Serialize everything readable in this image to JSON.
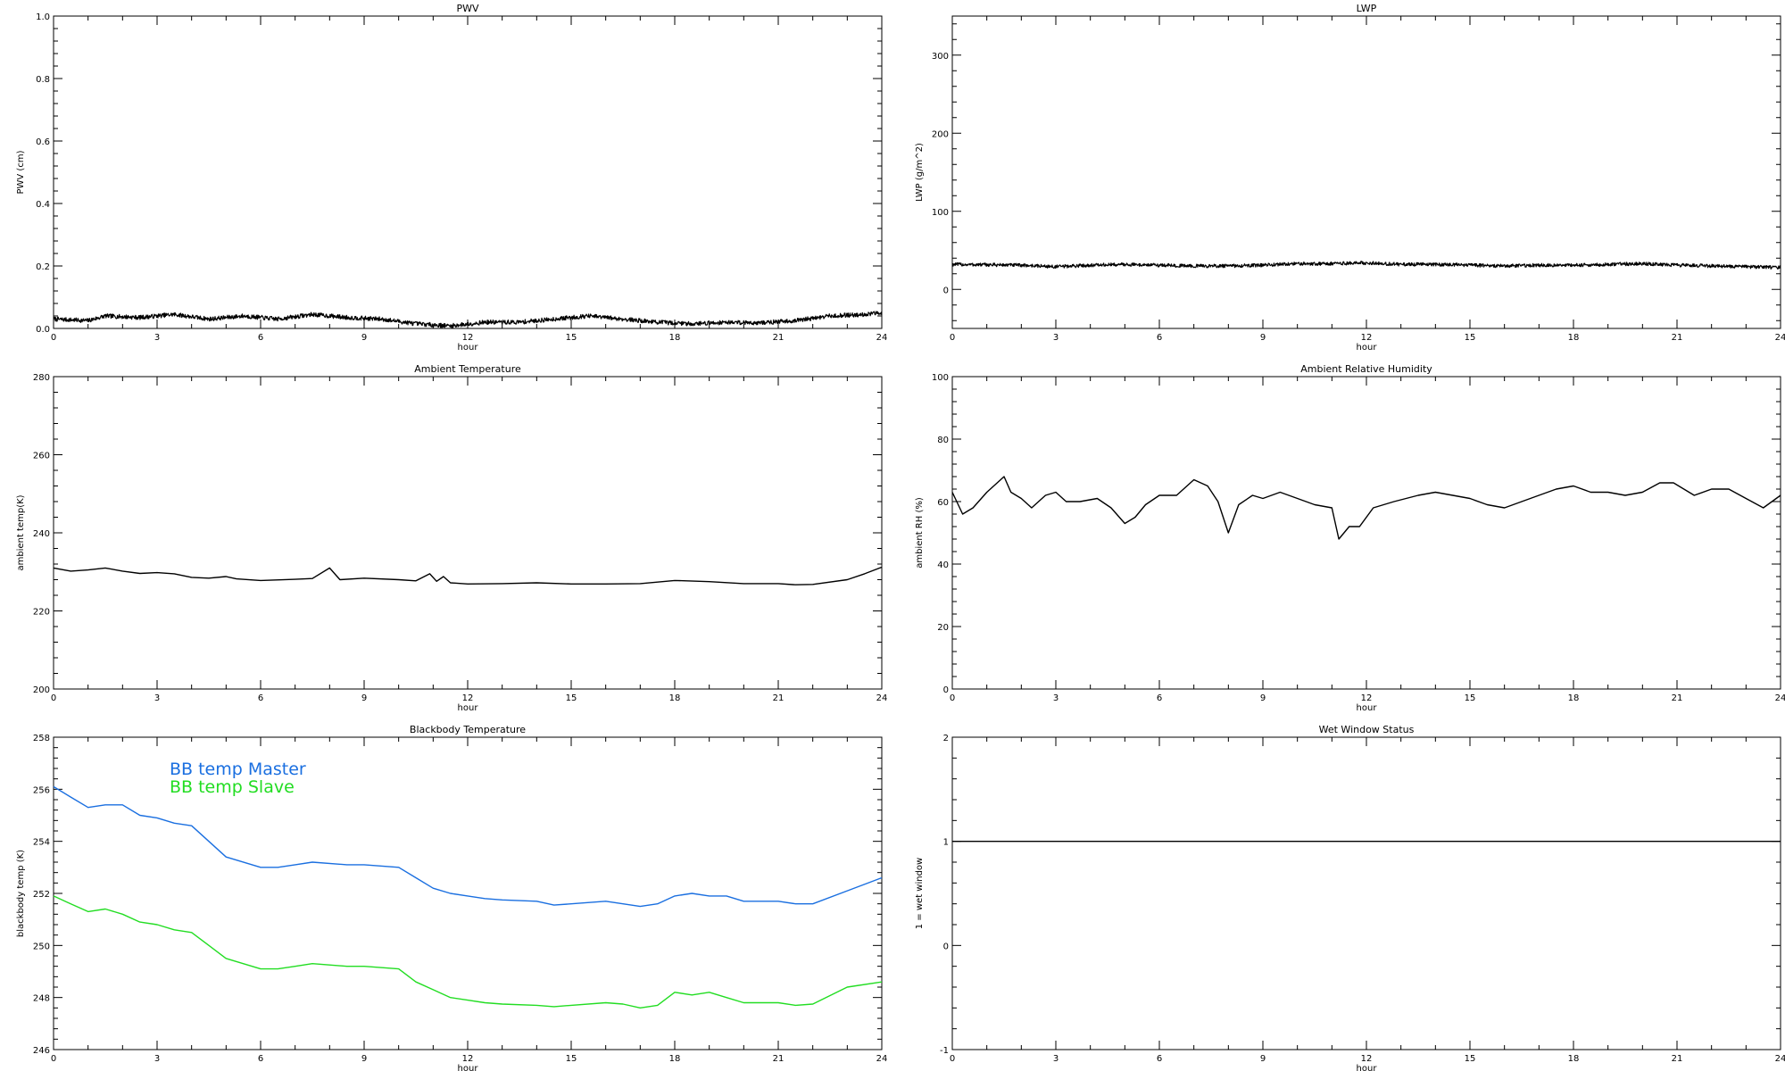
{
  "chart_data": [
    {
      "id": "pwv",
      "type": "line",
      "title": "PWV",
      "xlabel": "hour",
      "ylabel": "PWV (cm)",
      "xlim": [
        0,
        24
      ],
      "ylim": [
        0,
        1.0
      ],
      "xticks": [
        0,
        3,
        6,
        9,
        12,
        15,
        18,
        21,
        24
      ],
      "yticks": [
        0.0,
        0.2,
        0.4,
        0.6,
        0.8,
        1.0
      ],
      "ytick_labels": [
        "0.0",
        "0.2",
        "0.4",
        "0.6",
        "0.8",
        "1.0"
      ],
      "noise": 0.007,
      "series": [
        {
          "color": "#000000",
          "points": [
            [
              0,
              0.03
            ],
            [
              1,
              0.025
            ],
            [
              1.5,
              0.04
            ],
            [
              2.5,
              0.035
            ],
            [
              3.5,
              0.045
            ],
            [
              4.5,
              0.03
            ],
            [
              5.5,
              0.04
            ],
            [
              6.5,
              0.03
            ],
            [
              7.5,
              0.045
            ],
            [
              8.5,
              0.035
            ],
            [
              9.5,
              0.03
            ],
            [
              10.5,
              0.015
            ],
            [
              11.5,
              0.008
            ],
            [
              12.5,
              0.02
            ],
            [
              13.5,
              0.02
            ],
            [
              14.5,
              0.03
            ],
            [
              15.5,
              0.04
            ],
            [
              16.5,
              0.03
            ],
            [
              17.5,
              0.02
            ],
            [
              18.5,
              0.015
            ],
            [
              19.5,
              0.02
            ],
            [
              20.5,
              0.018
            ],
            [
              21.5,
              0.025
            ],
            [
              22.5,
              0.04
            ],
            [
              23.5,
              0.045
            ],
            [
              24,
              0.05
            ]
          ]
        }
      ]
    },
    {
      "id": "lwp",
      "type": "line",
      "title": "LWP",
      "xlabel": "hour",
      "ylabel": "LWP (g/m^2)",
      "xlim": [
        0,
        24
      ],
      "ylim": [
        -50,
        350
      ],
      "xticks": [
        0,
        3,
        6,
        9,
        12,
        15,
        18,
        21,
        24
      ],
      "yticks": [
        0,
        100,
        200,
        300
      ],
      "ytick_labels": [
        "0",
        "100",
        "200",
        "300"
      ],
      "noise": 2.2,
      "series": [
        {
          "color": "#000000",
          "points": [
            [
              0,
              32
            ],
            [
              2,
              31
            ],
            [
              3,
              29
            ],
            [
              4,
              31
            ],
            [
              5,
              32
            ],
            [
              6,
              31
            ],
            [
              7,
              30
            ],
            [
              8,
              30
            ],
            [
              9,
              31
            ],
            [
              10,
              33
            ],
            [
              11,
              33
            ],
            [
              12,
              34
            ],
            [
              13,
              32
            ],
            [
              14,
              32
            ],
            [
              15,
              31
            ],
            [
              16,
              30
            ],
            [
              17,
              31
            ],
            [
              18,
              31
            ],
            [
              19,
              32
            ],
            [
              20,
              33
            ],
            [
              21,
              31
            ],
            [
              22,
              30
            ],
            [
              23,
              29
            ],
            [
              24,
              28
            ]
          ]
        }
      ]
    },
    {
      "id": "ambient-temperature",
      "type": "line",
      "title": "Ambient Temperature",
      "xlabel": "hour",
      "ylabel": "ambient temp(K)",
      "xlim": [
        0,
        24
      ],
      "ylim": [
        200,
        280
      ],
      "xticks": [
        0,
        3,
        6,
        9,
        12,
        15,
        18,
        21,
        24
      ],
      "yticks": [
        200,
        220,
        240,
        260,
        280
      ],
      "ytick_labels": [
        "200",
        "220",
        "240",
        "260",
        "280"
      ],
      "noise": 0,
      "series": [
        {
          "color": "#000000",
          "points": [
            [
              0,
              231
            ],
            [
              0.5,
              230.2
            ],
            [
              1,
              230.5
            ],
            [
              1.5,
              231
            ],
            [
              2,
              230.2
            ],
            [
              2.5,
              229.6
            ],
            [
              3,
              229.8
            ],
            [
              3.5,
              229.5
            ],
            [
              4,
              228.6
            ],
            [
              4.5,
              228.4
            ],
            [
              5,
              228.8
            ],
            [
              5.3,
              228.2
            ],
            [
              6,
              227.8
            ],
            [
              7,
              228.1
            ],
            [
              7.5,
              228.3
            ],
            [
              8,
              231
            ],
            [
              8.3,
              228
            ],
            [
              9,
              228.4
            ],
            [
              10,
              228
            ],
            [
              10.5,
              227.7
            ],
            [
              10.9,
              229.5
            ],
            [
              11.1,
              227.6
            ],
            [
              11.3,
              228.8
            ],
            [
              11.5,
              227.2
            ],
            [
              12,
              226.9
            ],
            [
              13,
              227
            ],
            [
              14,
              227.2
            ],
            [
              15,
              226.9
            ],
            [
              16,
              226.9
            ],
            [
              17,
              227
            ],
            [
              18,
              227.8
            ],
            [
              19,
              227.5
            ],
            [
              20,
              227
            ],
            [
              21,
              227
            ],
            [
              21.5,
              226.7
            ],
            [
              22,
              226.8
            ],
            [
              23,
              228
            ],
            [
              23.5,
              229.5
            ],
            [
              24,
              231.2
            ]
          ]
        }
      ]
    },
    {
      "id": "ambient-relative-humidity",
      "type": "line",
      "title": "Ambient Relative Humidity",
      "xlabel": "hour",
      "ylabel": "ambient RH (%)",
      "xlim": [
        0,
        24
      ],
      "ylim": [
        0,
        100
      ],
      "xticks": [
        0,
        3,
        6,
        9,
        12,
        15,
        18,
        21,
        24
      ],
      "yticks": [
        0,
        20,
        40,
        60,
        80,
        100
      ],
      "ytick_labels": [
        "0",
        "20",
        "40",
        "60",
        "80",
        "100"
      ],
      "noise": 0,
      "series": [
        {
          "color": "#000000",
          "points": [
            [
              0,
              63
            ],
            [
              0.3,
              56
            ],
            [
              0.6,
              58
            ],
            [
              1,
              63
            ],
            [
              1.3,
              66
            ],
            [
              1.5,
              68
            ],
            [
              1.7,
              63
            ],
            [
              2,
              61
            ],
            [
              2.3,
              58
            ],
            [
              2.7,
              62
            ],
            [
              3,
              63
            ],
            [
              3.3,
              60
            ],
            [
              3.7,
              60
            ],
            [
              4.2,
              61
            ],
            [
              4.6,
              58
            ],
            [
              5,
              53
            ],
            [
              5.3,
              55
            ],
            [
              5.6,
              59
            ],
            [
              6,
              62
            ],
            [
              6.5,
              62
            ],
            [
              7,
              67
            ],
            [
              7.4,
              65
            ],
            [
              7.7,
              60
            ],
            [
              8,
              50
            ],
            [
              8.3,
              59
            ],
            [
              8.7,
              62
            ],
            [
              9,
              61
            ],
            [
              9.5,
              63
            ],
            [
              10,
              61
            ],
            [
              10.5,
              59
            ],
            [
              11,
              58
            ],
            [
              11.2,
              48
            ],
            [
              11.5,
              52
            ],
            [
              11.8,
              52
            ],
            [
              12.2,
              58
            ],
            [
              12.8,
              60
            ],
            [
              13.5,
              62
            ],
            [
              14,
              63
            ],
            [
              14.5,
              62
            ],
            [
              15,
              61
            ],
            [
              15.5,
              59
            ],
            [
              16,
              58
            ],
            [
              16.5,
              60
            ],
            [
              17,
              62
            ],
            [
              17.5,
              64
            ],
            [
              18,
              65
            ],
            [
              18.5,
              63
            ],
            [
              19,
              63
            ],
            [
              19.5,
              62
            ],
            [
              20,
              63
            ],
            [
              20.5,
              66
            ],
            [
              20.9,
              66
            ],
            [
              21.5,
              62
            ],
            [
              22,
              64
            ],
            [
              22.5,
              64
            ],
            [
              23,
              61
            ],
            [
              23.5,
              58
            ],
            [
              24,
              62
            ]
          ]
        }
      ]
    },
    {
      "id": "blackbody-temperature",
      "type": "line",
      "title": "Blackbody Temperature",
      "xlabel": "hour",
      "ylabel": "blackbody temp (K)",
      "xlim": [
        0,
        24
      ],
      "ylim": [
        246,
        258
      ],
      "xticks": [
        0,
        3,
        6,
        9,
        12,
        15,
        18,
        21,
        24
      ],
      "yticks": [
        246,
        248,
        250,
        252,
        254,
        256,
        258
      ],
      "ytick_labels": [
        "246",
        "248",
        "250",
        "252",
        "254",
        "256",
        "258"
      ],
      "noise": 0,
      "series": [
        {
          "name": "BB temp Master",
          "color": "#1a6fe0",
          "points": [
            [
              0,
              256.1
            ],
            [
              0.5,
              255.7
            ],
            [
              1,
              255.3
            ],
            [
              1.5,
              255.4
            ],
            [
              2,
              255.4
            ],
            [
              2.5,
              255.0
            ],
            [
              3,
              254.9
            ],
            [
              3.5,
              254.7
            ],
            [
              4,
              254.6
            ],
            [
              4.5,
              254.0
            ],
            [
              5,
              253.4
            ],
            [
              6,
              253.0
            ],
            [
              6.5,
              253.0
            ],
            [
              7,
              253.1
            ],
            [
              7.5,
              253.2
            ],
            [
              8.5,
              253.1
            ],
            [
              9,
              253.1
            ],
            [
              10,
              253.0
            ],
            [
              10.5,
              252.6
            ],
            [
              11,
              252.2
            ],
            [
              11.5,
              252.0
            ],
            [
              12,
              251.9
            ],
            [
              12.5,
              251.8
            ],
            [
              13,
              251.75
            ],
            [
              14,
              251.7
            ],
            [
              14.5,
              251.55
            ],
            [
              15,
              251.6
            ],
            [
              16,
              251.7
            ],
            [
              16.5,
              251.6
            ],
            [
              17,
              251.5
            ],
            [
              17.5,
              251.6
            ],
            [
              18,
              251.9
            ],
            [
              18.5,
              252.0
            ],
            [
              19,
              251.9
            ],
            [
              19.5,
              251.9
            ],
            [
              20,
              251.7
            ],
            [
              21,
              251.7
            ],
            [
              21.5,
              251.6
            ],
            [
              22,
              251.6
            ],
            [
              23,
              252.1
            ],
            [
              24,
              252.6
            ]
          ]
        },
        {
          "name": "BB temp Slave",
          "color": "#22dd22",
          "points": [
            [
              0,
              251.9
            ],
            [
              0.5,
              251.6
            ],
            [
              1,
              251.3
            ],
            [
              1.5,
              251.4
            ],
            [
              2,
              251.2
            ],
            [
              2.5,
              250.9
            ],
            [
              3,
              250.8
            ],
            [
              3.5,
              250.6
            ],
            [
              4,
              250.5
            ],
            [
              4.5,
              250.0
            ],
            [
              5,
              249.5
            ],
            [
              6,
              249.1
            ],
            [
              6.5,
              249.1
            ],
            [
              7,
              249.2
            ],
            [
              7.5,
              249.3
            ],
            [
              8.5,
              249.2
            ],
            [
              9,
              249.2
            ],
            [
              10,
              249.1
            ],
            [
              10.5,
              248.6
            ],
            [
              11,
              248.3
            ],
            [
              11.5,
              248.0
            ],
            [
              12,
              247.9
            ],
            [
              12.5,
              247.8
            ],
            [
              13,
              247.75
            ],
            [
              14,
              247.7
            ],
            [
              14.5,
              247.65
            ],
            [
              15,
              247.7
            ],
            [
              16,
              247.8
            ],
            [
              16.5,
              247.75
            ],
            [
              17,
              247.6
            ],
            [
              17.5,
              247.7
            ],
            [
              18,
              248.2
            ],
            [
              18.5,
              248.1
            ],
            [
              19,
              248.2
            ],
            [
              19.5,
              248.0
            ],
            [
              20,
              247.8
            ],
            [
              21,
              247.8
            ],
            [
              21.5,
              247.7
            ],
            [
              22,
              247.75
            ],
            [
              23,
              248.4
            ],
            [
              24,
              248.6
            ]
          ]
        }
      ]
    },
    {
      "id": "wet-window-status",
      "type": "line",
      "title": "Wet Window Status",
      "xlabel": "hour",
      "ylabel": "1 = wet window",
      "xlim": [
        0,
        24
      ],
      "ylim": [
        -1,
        2
      ],
      "xticks": [
        0,
        3,
        6,
        9,
        12,
        15,
        18,
        21,
        24
      ],
      "yticks": [
        -1,
        0,
        1,
        2
      ],
      "ytick_labels": [
        "-1",
        "0",
        "1",
        "2"
      ],
      "noise": 0,
      "series": [
        {
          "color": "#000000",
          "points": [
            [
              0,
              1
            ],
            [
              24,
              1
            ]
          ]
        }
      ]
    }
  ]
}
